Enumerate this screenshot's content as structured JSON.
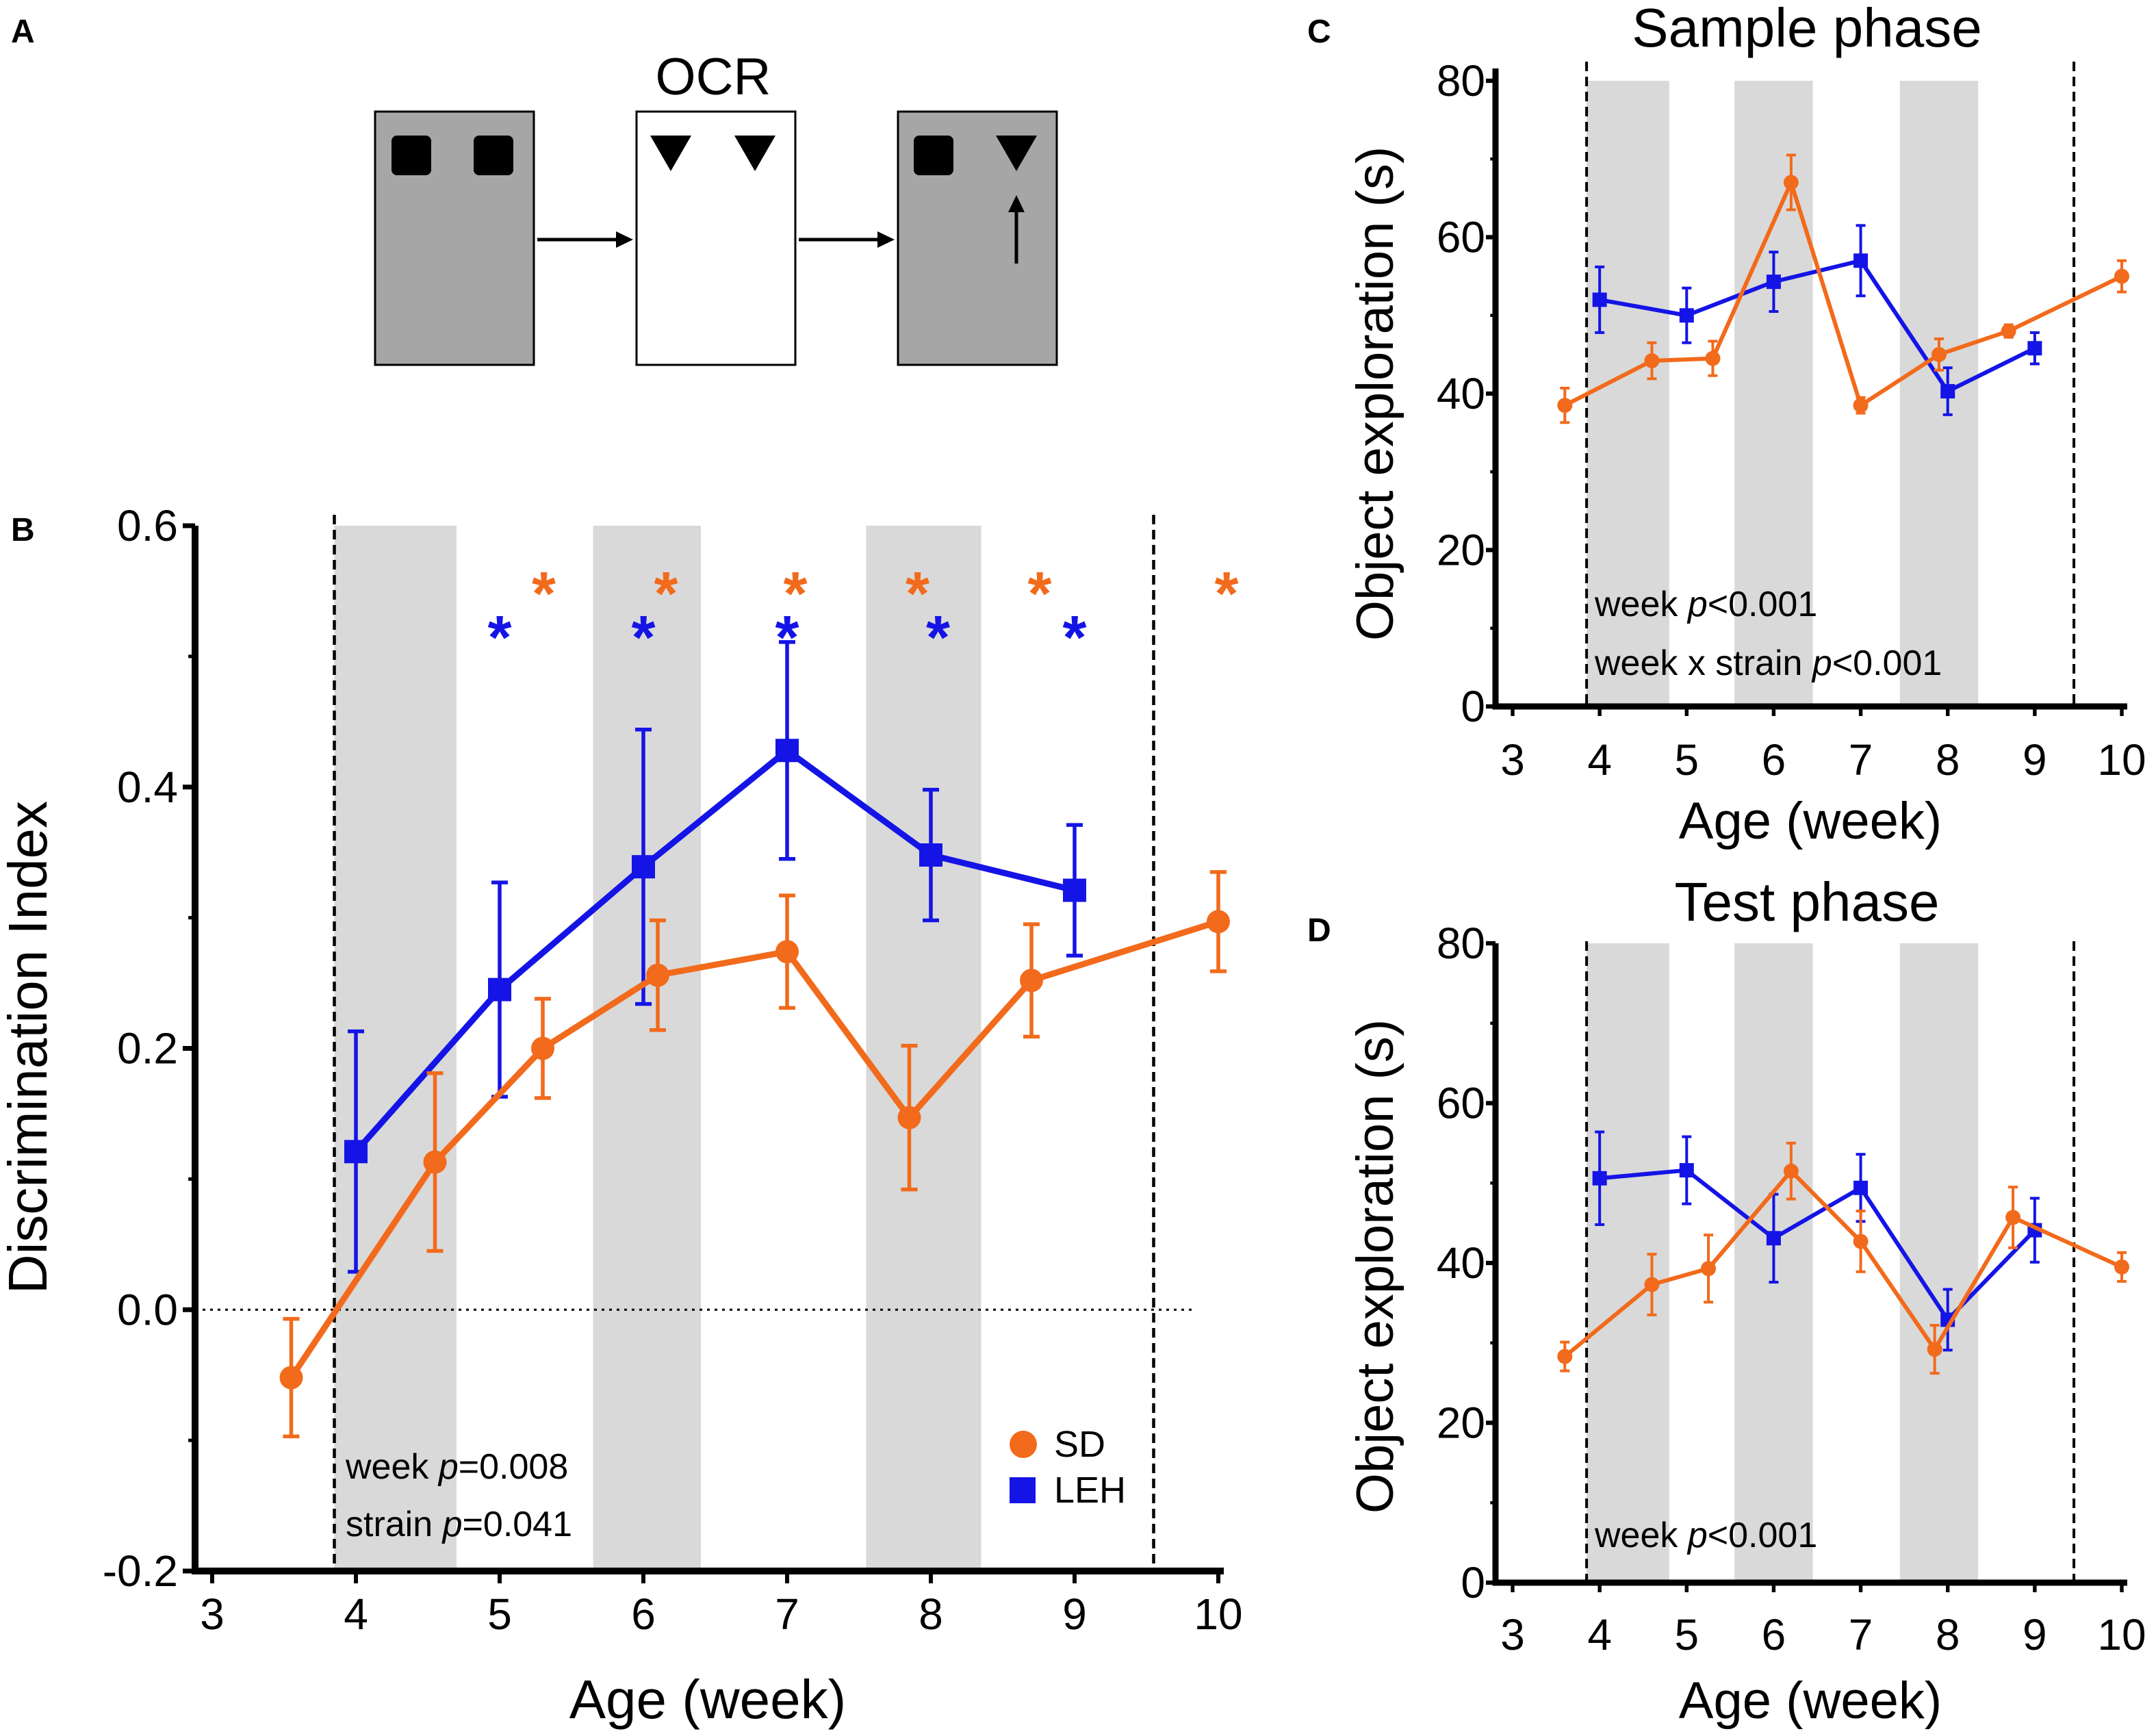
{
  "colors": {
    "sd": "#f26a1b",
    "leh": "#1414e6",
    "shade": "#d9d9d9",
    "axis": "#000000",
    "box_gray": "#a6a6a6"
  },
  "panel_a": {
    "letter": "A",
    "ocr_label": "OCR"
  },
  "chart_data": [
    {
      "id": "B",
      "type": "line",
      "letter": "B",
      "title": "",
      "xlabel": "Age (week)",
      "ylabel": "Discrimination Index",
      "xlim": [
        3,
        10
      ],
      "ylim": [
        -0.2,
        0.6
      ],
      "xticks": [
        "3",
        "4",
        "5",
        "6",
        "7",
        "8",
        "9",
        "10"
      ],
      "yticks": [
        "-0.2",
        "0.0",
        "0.2",
        "0.4",
        "0.6"
      ],
      "shaded_weeks": [
        [
          3.85,
          4.7
        ],
        [
          5.65,
          6.4
        ],
        [
          7.55,
          8.35
        ]
      ],
      "dashed_vlines": [
        3.85,
        9.55
      ],
      "zero_line": 0,
      "series": [
        {
          "name": "SD",
          "marker": "circle",
          "x": [
            3.55,
            4.55,
            5.3,
            6.1,
            7.0,
            7.85,
            8.7,
            10.0
          ],
          "y": [
            -0.052,
            0.113,
            0.2,
            0.256,
            0.274,
            0.147,
            0.252,
            0.297
          ],
          "err": [
            0.045,
            0.068,
            0.038,
            0.042,
            0.043,
            0.055,
            0.043,
            0.038
          ]
        },
        {
          "name": "LEH",
          "marker": "square",
          "x": [
            4.0,
            5.0,
            6.0,
            7.0,
            8.0,
            9.0
          ],
          "y": [
            0.121,
            0.245,
            0.339,
            0.428,
            0.348,
            0.321
          ],
          "err": [
            0.092,
            0.082,
            0.105,
            0.083,
            0.05,
            0.05
          ]
        }
      ],
      "stars_sd": [
        5.25,
        6.1,
        7.0,
        7.85,
        8.7,
        10.0
      ],
      "stars_leh": [
        5.0,
        6.0,
        7.0,
        8.05,
        9.0
      ],
      "annotations": [
        {
          "pre": "week ",
          "italic": "p",
          "post": "=0.008"
        },
        {
          "pre": "strain ",
          "italic": "p",
          "post": "=0.041"
        }
      ],
      "legend": {
        "placement": "bottom-right",
        "entries": [
          "SD",
          "LEH"
        ]
      }
    },
    {
      "id": "C",
      "type": "line",
      "letter": "C",
      "title": "Sample phase",
      "xlabel": "Age (week)",
      "ylabel": "Object exploration (s)",
      "xlim": [
        3,
        10
      ],
      "ylim": [
        0,
        80
      ],
      "xticks": [
        "3",
        "4",
        "5",
        "6",
        "7",
        "8",
        "9",
        "10"
      ],
      "yticks": [
        "0",
        "20",
        "40",
        "60",
        "80"
      ],
      "shaded_weeks": [
        [
          3.85,
          4.8
        ],
        [
          5.55,
          6.45
        ],
        [
          7.45,
          8.35
        ]
      ],
      "dashed_vlines": [
        3.85,
        9.45
      ],
      "series": [
        {
          "name": "SD",
          "marker": "circle",
          "x": [
            3.6,
            4.6,
            5.3,
            6.2,
            7.0,
            7.9,
            8.7,
            10.0
          ],
          "y": [
            38.5,
            44.2,
            44.5,
            67.0,
            38.5,
            45.0,
            48.0,
            55.0
          ],
          "err": [
            2.2,
            2.3,
            2.2,
            3.5,
            1.0,
            2.0,
            0.8,
            2.0
          ]
        },
        {
          "name": "LEH",
          "marker": "square",
          "x": [
            4.0,
            5.0,
            6.0,
            7.0,
            8.0,
            9.0
          ],
          "y": [
            52.0,
            50.0,
            54.3,
            57.0,
            40.3,
            45.8
          ],
          "err": [
            4.2,
            3.5,
            3.8,
            4.5,
            3.0,
            2.0
          ]
        }
      ],
      "annotations": [
        {
          "pre": "week ",
          "italic": "p",
          "post": "<0.001"
        },
        {
          "pre": "week x strain ",
          "italic": "p",
          "post": "<0.001"
        }
      ]
    },
    {
      "id": "D",
      "type": "line",
      "letter": "D",
      "title": "Test phase",
      "xlabel": "Age (week)",
      "ylabel": "Object exploration (s)",
      "xlim": [
        3,
        10
      ],
      "ylim": [
        0,
        80
      ],
      "xticks": [
        "3",
        "4",
        "5",
        "6",
        "7",
        "8",
        "9",
        "10"
      ],
      "yticks": [
        "0",
        "20",
        "40",
        "60",
        "80"
      ],
      "shaded_weeks": [
        [
          3.85,
          4.8
        ],
        [
          5.55,
          6.45
        ],
        [
          7.45,
          8.35
        ]
      ],
      "dashed_vlines": [
        3.85,
        9.45
      ],
      "series": [
        {
          "name": "SD",
          "marker": "circle",
          "x": [
            3.6,
            4.6,
            5.25,
            6.2,
            7.0,
            7.85,
            8.75,
            10.0
          ],
          "y": [
            28.3,
            37.3,
            39.3,
            51.5,
            42.7,
            29.2,
            45.7,
            39.5
          ],
          "err": [
            1.8,
            3.8,
            4.2,
            3.5,
            3.8,
            3.0,
            3.8,
            1.8
          ]
        },
        {
          "name": "LEH",
          "marker": "square",
          "x": [
            4.0,
            5.0,
            6.0,
            7.0,
            8.0,
            9.0
          ],
          "y": [
            50.6,
            51.6,
            43.1,
            49.4,
            32.9,
            44.1
          ],
          "err": [
            5.8,
            4.2,
            5.5,
            4.2,
            3.8,
            4.0
          ]
        }
      ],
      "annotations": [
        {
          "pre": "week ",
          "italic": "p",
          "post": "<0.001"
        }
      ]
    }
  ]
}
